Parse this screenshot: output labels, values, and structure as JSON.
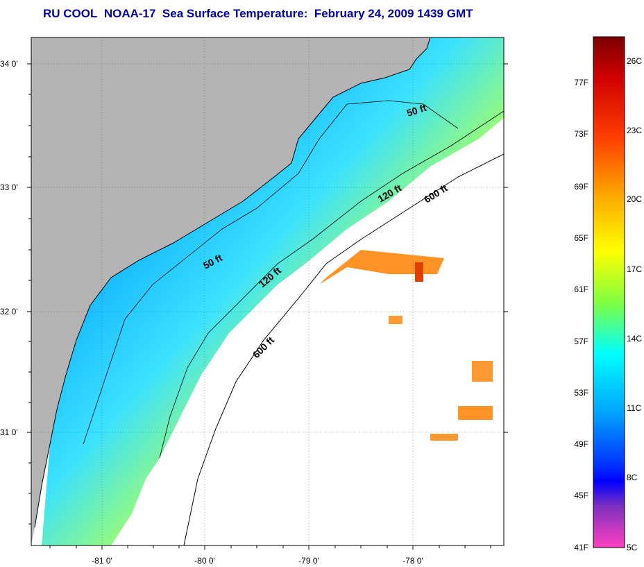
{
  "title": {
    "org": "RU COOL",
    "satellite": "NOAA-17",
    "product": "Sea Surface Temperature:",
    "datetime": "February 24, 2009 1439 GMT"
  },
  "map": {
    "y_ticks": [
      "34 0'",
      "33 0'",
      "32 0'",
      "31 0'"
    ],
    "x_ticks": [
      "-81 0'",
      "-80 0'",
      "-79 0'",
      "-78 0'"
    ],
    "contours": [
      "50 ft",
      "120 ft",
      "600 ft",
      "50 ft",
      "120 ft",
      "600 ft"
    ],
    "colors": {
      "land": "#b4b4b4",
      "cloud": "#ffffff",
      "isobath": "#000000"
    }
  },
  "colorbar": {
    "fahrenheit": [
      "77F",
      "73F",
      "69F",
      "65F",
      "61F",
      "57F",
      "53F",
      "49F",
      "45F",
      "41F"
    ],
    "celsius": [
      "26C",
      "23C",
      "20C",
      "17C",
      "14C",
      "11C",
      "8C",
      "5C"
    ],
    "gradient": [
      "#7a0000",
      "#ff0000",
      "#ff8000",
      "#ffd000",
      "#ffff00",
      "#80ff40",
      "#00ffff",
      "#00a0ff",
      "#0040ff",
      "#0000ff",
      "#8000c0",
      "#ff40c0"
    ]
  }
}
